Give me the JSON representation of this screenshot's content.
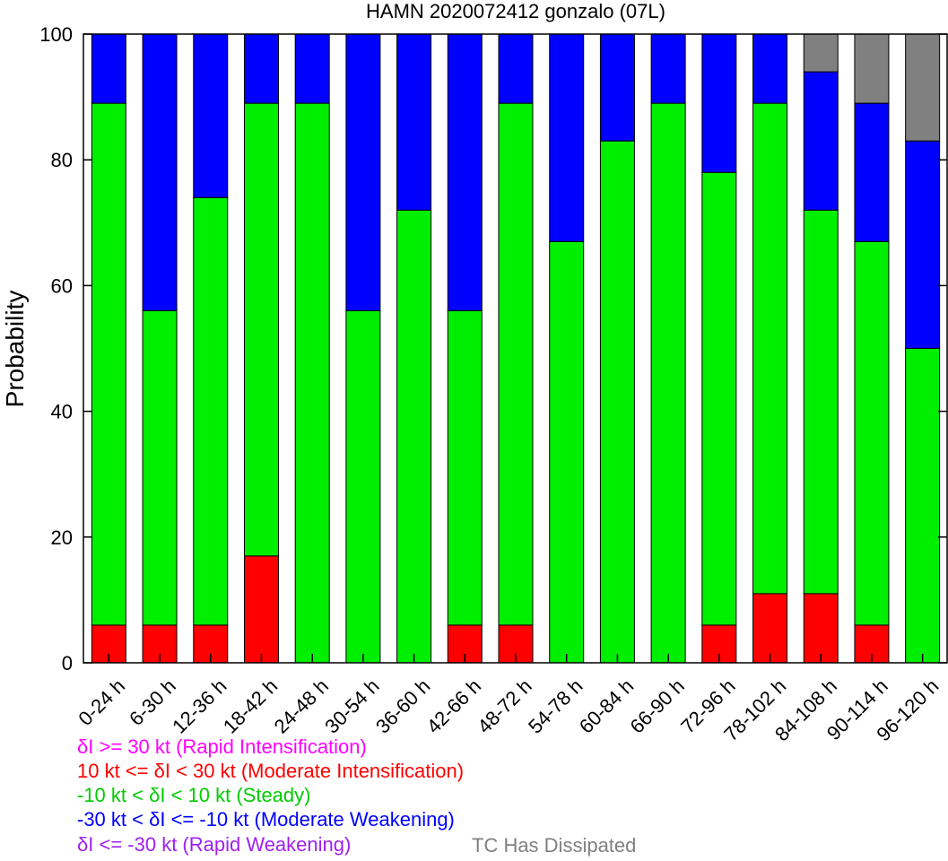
{
  "chart_data": {
    "type": "bar",
    "stacked": true,
    "title": "HAMN 2020072412 gonzalo (07L)",
    "xlabel": "",
    "ylabel": "Probability",
    "ylim": [
      0,
      100
    ],
    "yticks": [
      0,
      20,
      40,
      60,
      80,
      100
    ],
    "categories": [
      "0-24 h",
      "6-30 h",
      "12-36 h",
      "18-42 h",
      "24-48 h",
      "30-54 h",
      "36-60 h",
      "42-66 h",
      "48-72 h",
      "54-78 h",
      "60-84 h",
      "66-90 h",
      "72-96 h",
      "78-102 h",
      "84-108 h",
      "90-114 h",
      "96-120 h"
    ],
    "series": [
      {
        "key": "ri",
        "color": "#ff00ff",
        "values": [
          0,
          0,
          0,
          0,
          0,
          0,
          0,
          0,
          0,
          0,
          0,
          0,
          0,
          0,
          0,
          0,
          0
        ]
      },
      {
        "key": "mi",
        "color": "#ff0000",
        "values": [
          6,
          6,
          6,
          17,
          0,
          0,
          0,
          6,
          6,
          0,
          0,
          0,
          6,
          11,
          11,
          6,
          0
        ]
      },
      {
        "key": "steady",
        "color": "#00ee00",
        "values": [
          83,
          50,
          68,
          72,
          89,
          56,
          72,
          50,
          83,
          67,
          83,
          89,
          72,
          78,
          61,
          61,
          50
        ]
      },
      {
        "key": "mw",
        "color": "#0000ff",
        "values": [
          11,
          44,
          26,
          11,
          11,
          44,
          28,
          44,
          11,
          33,
          17,
          11,
          22,
          11,
          22,
          22,
          33
        ]
      },
      {
        "key": "rw",
        "color": "#a020f0",
        "values": [
          0,
          0,
          0,
          0,
          0,
          0,
          0,
          0,
          0,
          0,
          0,
          0,
          0,
          0,
          0,
          0,
          0
        ]
      },
      {
        "key": "dissipated",
        "color": "#808080",
        "values": [
          0,
          0,
          0,
          0,
          0,
          0,
          0,
          0,
          0,
          0,
          0,
          0,
          0,
          0,
          6,
          11,
          17
        ]
      }
    ],
    "grid": false
  },
  "legend": {
    "items": [
      {
        "text": "δI >= 30 kt (Rapid Intensification)",
        "color": "#ff00ff"
      },
      {
        "text": "10 kt <= δI < 30 kt (Moderate Intensification)",
        "color": "#ff0000"
      },
      {
        "text": "-10 kt < δI < 10 kt (Steady)",
        "color": "#00cc00"
      },
      {
        "text": "-30 kt < δI <= -10 kt (Moderate Weakening)",
        "color": "#0000ff"
      },
      {
        "text": "δI <= -30 kt (Rapid Weakening)",
        "color": "#a020f0"
      }
    ],
    "dissipated": {
      "text": "TC Has Dissipated",
      "color": "#808080"
    }
  }
}
